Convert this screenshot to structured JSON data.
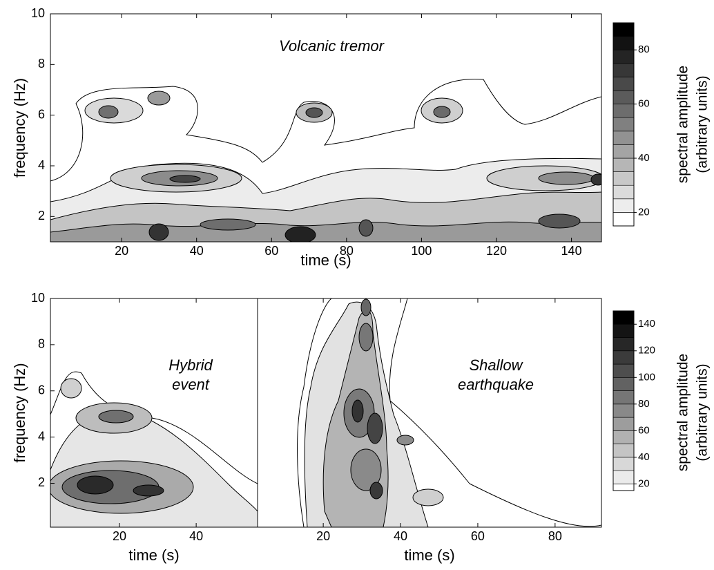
{
  "chart_data": [
    {
      "type": "contour",
      "annotation": [
        "Volcanic tremor"
      ],
      "xlabel": "time (s)",
      "ylabel": "frequency (Hz)",
      "xlim": [
        1,
        148
      ],
      "xticks": [
        20,
        40,
        60,
        80,
        100,
        120,
        140
      ],
      "ylim": [
        1,
        10
      ],
      "yticks": [
        2,
        4,
        6,
        8,
        10
      ],
      "colorbar": {
        "label": [
          "spectral amplitude",
          "(arbitrary units)"
        ],
        "levels": [
          15,
          20,
          25,
          30,
          35,
          40,
          45,
          50,
          55,
          60,
          65,
          70,
          75,
          80,
          85,
          90
        ],
        "ticks": [
          20,
          40,
          60,
          80
        ]
      }
    },
    {
      "type": "contour",
      "annotation": [
        "Hybrid",
        "event"
      ],
      "xlabel": "time (s)",
      "ylabel": "frequency (Hz)",
      "xlim": [
        2,
        56
      ],
      "xticks": [
        20,
        40
      ],
      "ylim": [
        0.1,
        10
      ],
      "yticks": [
        2,
        4,
        6,
        8,
        10
      ]
    },
    {
      "type": "contour",
      "annotation": [
        "Shallow",
        "earthquake"
      ],
      "xlabel": "time (s)",
      "xlim": [
        3,
        92
      ],
      "xticks": [
        20,
        40,
        60,
        80
      ],
      "ylim": [
        0.1,
        10
      ],
      "colorbar": {
        "label": [
          "spectral amplitude",
          "(arbitrary units)"
        ],
        "levels": [
          15,
          20,
          30,
          40,
          50,
          60,
          70,
          80,
          90,
          100,
          110,
          120,
          130,
          140,
          150
        ],
        "ticks": [
          20,
          40,
          60,
          80,
          100,
          120,
          140
        ]
      }
    }
  ]
}
